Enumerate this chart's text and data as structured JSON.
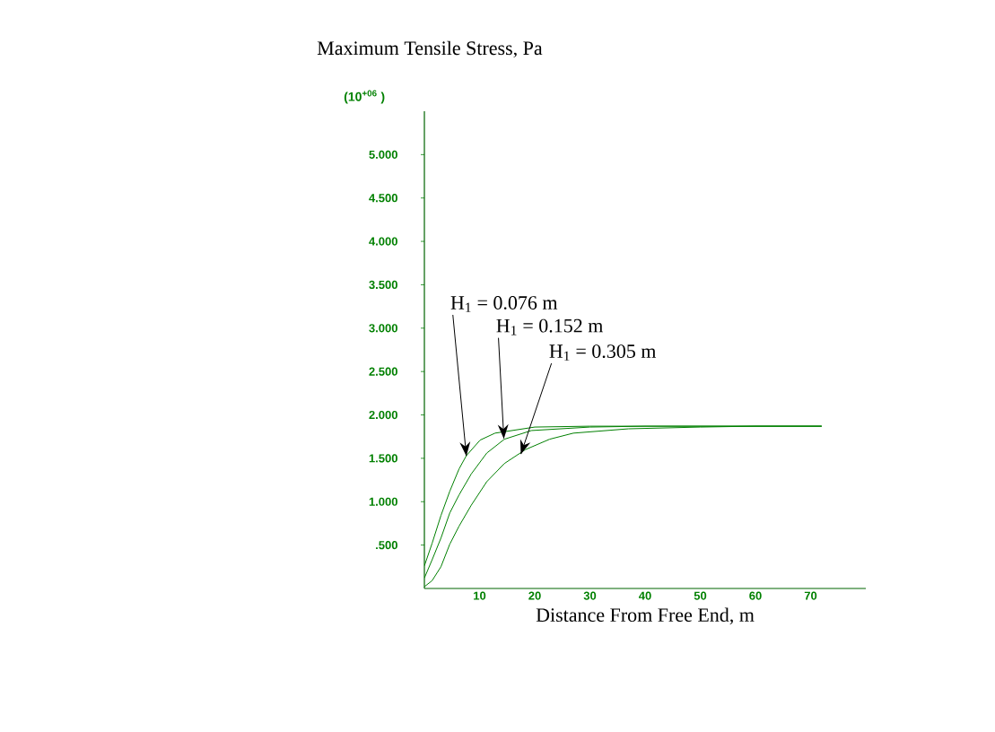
{
  "chart_data": {
    "type": "line",
    "title": "Maximum Tensile Stress, Pa",
    "ylabel": "(10$^{+06}$ )",
    "xlabel": "Distance From Free End, m",
    "xlim": [
      0,
      80
    ],
    "ylim": [
      0,
      5.5
    ],
    "xticks": [
      10,
      20,
      30,
      40,
      50,
      60,
      70
    ],
    "yticks": [
      {
        "value": 0.5,
        "label": ".500"
      },
      {
        "value": 1,
        "label": "1.000"
      },
      {
        "value": 1.5,
        "label": "1.500"
      },
      {
        "value": 2,
        "label": "2.000"
      },
      {
        "value": 2.5,
        "label": "2.500"
      },
      {
        "value": 3,
        "label": "3.000"
      },
      {
        "value": 3.5,
        "label": "3.500"
      },
      {
        "value": 4,
        "label": "4.000"
      },
      {
        "value": 4.5,
        "label": "4.500"
      },
      {
        "value": 5,
        "label": "5.000"
      }
    ],
    "legend": false,
    "line_style": "solid",
    "marker": "none",
    "series": [
      {
        "color": "#008000",
        "x": [
          0,
          1.4,
          3,
          4.6,
          6.3,
          7.6,
          10.1,
          12.8,
          20,
          30,
          40,
          50,
          60,
          72
        ],
        "values": [
          0.26,
          0.52,
          0.84,
          1.12,
          1.38,
          1.53,
          1.71,
          1.79,
          1.86,
          1.87,
          1.87,
          1.87,
          1.87,
          1.87
        ]
      },
      {
        "color": "#008000",
        "x": [
          0,
          1.4,
          3,
          4.6,
          6.3,
          8.5,
          11.3,
          14.5,
          19.4,
          30,
          40,
          50,
          60,
          72
        ],
        "values": [
          0.12,
          0.33,
          0.58,
          0.87,
          1.08,
          1.32,
          1.56,
          1.72,
          1.82,
          1.86,
          1.87,
          1.87,
          1.87,
          1.87
        ]
      },
      {
        "color": "#008000",
        "x": [
          0,
          1.4,
          3,
          4.6,
          6.3,
          8.5,
          11.3,
          14.5,
          18.3,
          22.7,
          27,
          37,
          50,
          60,
          72
        ],
        "values": [
          0.02,
          0.09,
          0.25,
          0.51,
          0.72,
          0.96,
          1.23,
          1.44,
          1.6,
          1.72,
          1.79,
          1.84,
          1.86,
          1.87,
          1.87
        ]
      }
    ],
    "annotations": [
      {
        "text": "H$_{1}$ = 0.076 m",
        "x": 7.6,
        "y": 1.53
      },
      {
        "text": "H$_{1}$ = 0.152 m",
        "x": 14.4,
        "y": 1.73
      },
      {
        "text": "H$_{1}$ = 0.305 m",
        "x": 17.5,
        "y": 1.55
      }
    ]
  }
}
